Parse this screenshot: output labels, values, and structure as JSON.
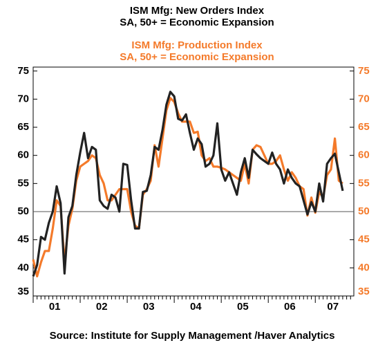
{
  "chart_data": {
    "type": "line",
    "title": "ISM Mfg: New Orders Index",
    "subtitle": "SA, 50+ = Economic Expansion",
    "title2": "ISM Mfg: Production Index",
    "subtitle2": "SA, 50+ = Economic Expansion",
    "source": "Source:  Institute for Supply Management /Haver Analytics",
    "categories": [
      null,
      null,
      null,
      null,
      null,
      "01",
      null,
      null,
      null,
      null,
      null,
      null,
      null,
      null,
      null,
      null,
      null,
      "02",
      null,
      null,
      null,
      null,
      null,
      null,
      null,
      null,
      null,
      null,
      null,
      "03",
      null,
      null,
      null,
      null,
      null,
      null,
      null,
      null,
      null,
      null,
      null,
      "04",
      null,
      null,
      null,
      null,
      null,
      null,
      null,
      null,
      null,
      null,
      null,
      "05",
      null,
      null,
      null,
      null,
      null,
      null,
      null,
      null,
      null,
      null,
      null,
      "06",
      null,
      null,
      null,
      null,
      null,
      null,
      null,
      null,
      null,
      null,
      "07",
      null,
      null,
      null
    ],
    "series": [
      {
        "name": "ISM Mfg: Production Index",
        "color": "#f47a2a",
        "values": [
          41.5,
          38.5,
          41,
          43,
          43,
          47,
          52,
          51,
          41,
          47.5,
          50.5,
          55.5,
          58,
          58.5,
          59,
          60,
          59.5,
          56.5,
          55,
          52,
          52,
          53,
          54,
          54,
          54,
          50,
          47.5,
          47,
          53,
          54,
          55.5,
          61.8,
          58,
          63,
          68,
          70.2,
          69.5,
          67.5,
          66,
          66,
          66,
          64,
          64.2,
          60,
          59,
          59.5,
          58,
          58,
          57.8,
          57.5,
          57,
          56.5,
          56,
          55.5,
          58.5,
          55,
          61,
          61.8,
          61.5,
          60,
          58.5,
          58.5,
          59,
          60,
          57.5,
          55.5,
          57,
          56,
          54.5,
          54,
          49.3,
          52.5,
          49.8,
          53.5,
          52.5,
          56.5,
          57.5,
          63,
          55.5,
          55
        ]
      },
      {
        "name": "ISM Mfg: New Orders Index",
        "color": "#222222",
        "values": [
          38.5,
          40.5,
          45.5,
          45,
          48,
          50,
          54.5,
          51.5,
          39,
          49,
          51,
          56.5,
          60.5,
          64,
          59.5,
          61.5,
          61,
          52,
          51,
          50.5,
          53,
          52.5,
          50,
          58.5,
          58.3,
          52,
          47,
          47,
          53.5,
          53.7,
          56.5,
          61.5,
          61,
          64.5,
          69,
          71.3,
          70.5,
          66.5,
          66.2,
          67.3,
          64,
          61,
          63,
          62,
          58,
          58.5,
          60,
          65.7,
          57.5,
          55.5,
          57,
          55,
          53,
          57,
          59.5,
          56,
          61,
          60.2,
          59.5,
          59,
          58.5,
          60.5,
          58.5,
          57.5,
          55,
          57.5,
          56,
          55,
          54.5,
          52,
          49.5,
          51.7,
          50,
          55,
          51.8,
          58.5,
          59.5,
          60.3,
          57,
          53.7
        ]
      }
    ],
    "reference_line": 50,
    "ylim": [
      35,
      75.7
    ],
    "yticks": [
      35,
      40,
      45,
      50,
      55,
      60,
      65,
      70,
      75
    ],
    "y2lim": [
      35,
      75.7
    ],
    "y2ticks": [
      35,
      40,
      45,
      50,
      55,
      60,
      65,
      70,
      75
    ],
    "y2color": "#f47a2a",
    "grid": false
  }
}
